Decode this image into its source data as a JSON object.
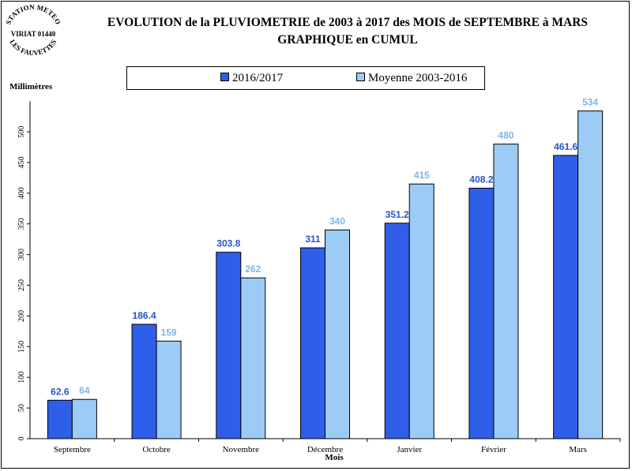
{
  "stamp": {
    "line1": "STATION METEO",
    "line2": "VIRIAT 01440",
    "line3": "LES FAUVETTES"
  },
  "chart_data": {
    "type": "bar",
    "title": "EVOLUTION de la PLUVIOMETRIE de 2003 à 2017 des MOIS de SEPTEMBRE à MARS",
    "subtitle": "GRAPHIQUE en CUMUL",
    "xlabel": "Mois",
    "ylabel": "Millimètres",
    "ylim": [
      0,
      550
    ],
    "yticks": [
      0,
      50,
      100,
      150,
      200,
      250,
      300,
      350,
      400,
      450,
      500
    ],
    "grid": false,
    "legend_position": "top",
    "categories": [
      "Septembre",
      "Octobre",
      "Novembre",
      "Décembre",
      "Janvier",
      "Février",
      "Mars"
    ],
    "series": [
      {
        "name": "2016/2017",
        "values": [
          62.6,
          186.4,
          303.8,
          311,
          351.2,
          408.2,
          461.6
        ],
        "labels": [
          "62.6",
          "186.4",
          "303.8",
          "311",
          "351.2",
          "408.2",
          "461.6"
        ],
        "color": "#2f5fe8",
        "label_color": "#2a52cc"
      },
      {
        "name": "Moyenne 2003-2016",
        "values": [
          64,
          159,
          262,
          340,
          415,
          480,
          534
        ],
        "labels": [
          "64",
          "159",
          "262",
          "340",
          "415",
          "480",
          "534"
        ],
        "color": "#9ccbf5",
        "label_color": "#7fb4e6"
      }
    ]
  }
}
